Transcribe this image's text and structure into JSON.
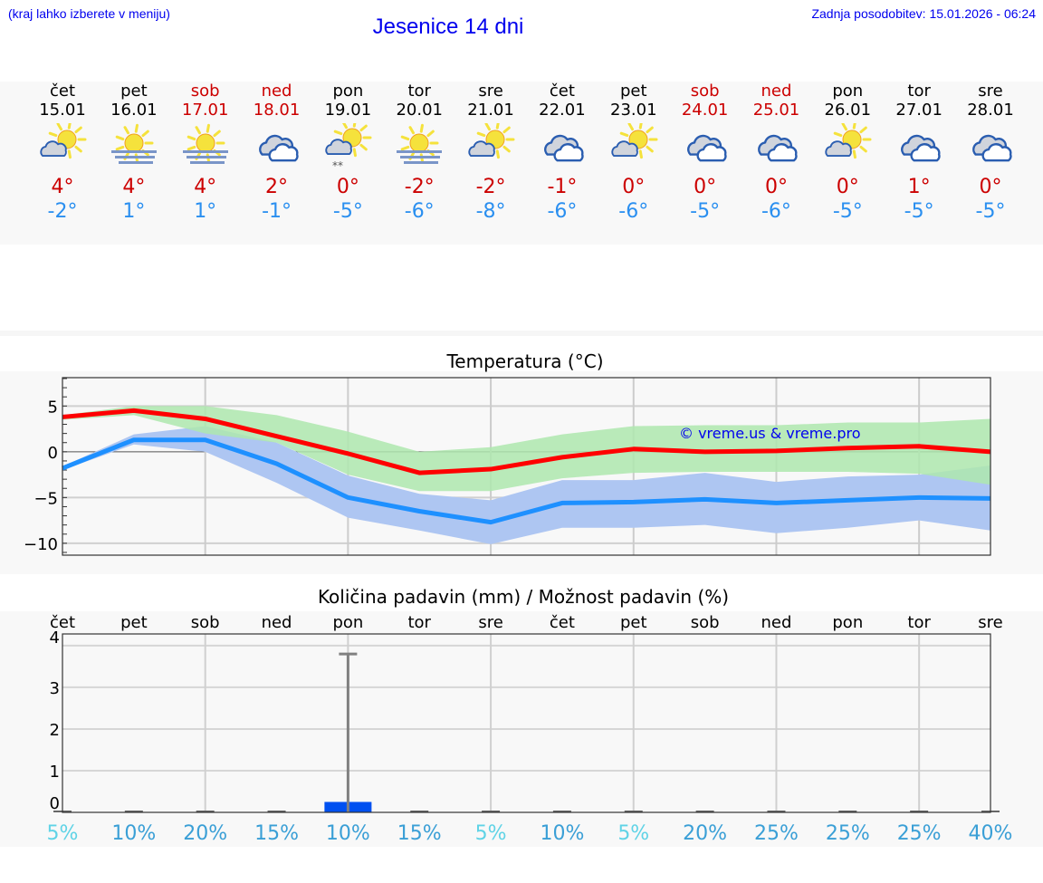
{
  "header": {
    "hint": "(kraj lahko izberete v meniju)",
    "title": "Jesenice 14 dni",
    "updated": "Zadnja posodobitev: 15.01.2026 - 06:24"
  },
  "colors": {
    "link_blue": "#0000ee",
    "weekend_red": "#cc0000",
    "max_temp": "#cc0000",
    "min_temp": "#2a8ff0",
    "max_line": "#ff0000",
    "min_line": "#1e90ff",
    "max_band": "#aee8ae",
    "min_band": "#aec6f2",
    "overlap_band": "#7fc8a8",
    "precip_bar": "#0050f0",
    "precip_err": "#808080",
    "prob_low": "#5fd3e6",
    "prob": "#3a9fd6"
  },
  "days": [
    {
      "name": "čet",
      "date": "15.01",
      "weekend": false,
      "icon": "sun-cloud-icon",
      "max": "4°",
      "min": "-2°"
    },
    {
      "name": "pet",
      "date": "16.01",
      "weekend": false,
      "icon": "sun-fog-icon",
      "max": "4°",
      "min": "1°"
    },
    {
      "name": "sob",
      "date": "17.01",
      "weekend": true,
      "icon": "sun-fog-icon",
      "max": "4°",
      "min": "1°"
    },
    {
      "name": "ned",
      "date": "18.01",
      "weekend": true,
      "icon": "cloudy-icon",
      "max": "2°",
      "min": "-1°"
    },
    {
      "name": "pon",
      "date": "19.01",
      "weekend": false,
      "icon": "sun-cloud-snow-icon",
      "max": "0°",
      "min": "-5°"
    },
    {
      "name": "tor",
      "date": "20.01",
      "weekend": false,
      "icon": "sun-fog-icon",
      "max": "-2°",
      "min": "-6°"
    },
    {
      "name": "sre",
      "date": "21.01",
      "weekend": false,
      "icon": "sun-cloud-icon",
      "max": "-2°",
      "min": "-8°"
    },
    {
      "name": "čet",
      "date": "22.01",
      "weekend": false,
      "icon": "cloudy-icon",
      "max": "-1°",
      "min": "-6°"
    },
    {
      "name": "pet",
      "date": "23.01",
      "weekend": false,
      "icon": "sun-cloud-icon",
      "max": "0°",
      "min": "-6°"
    },
    {
      "name": "sob",
      "date": "24.01",
      "weekend": true,
      "icon": "cloudy-icon",
      "max": "0°",
      "min": "-5°"
    },
    {
      "name": "ned",
      "date": "25.01",
      "weekend": true,
      "icon": "cloudy-icon",
      "max": "0°",
      "min": "-6°"
    },
    {
      "name": "pon",
      "date": "26.01",
      "weekend": false,
      "icon": "sun-cloud-icon",
      "max": "0°",
      "min": "-5°"
    },
    {
      "name": "tor",
      "date": "27.01",
      "weekend": false,
      "icon": "cloudy-icon",
      "max": "1°",
      "min": "-5°"
    },
    {
      "name": "sre",
      "date": "28.01",
      "weekend": false,
      "icon": "cloudy-icon",
      "max": "0°",
      "min": "-5°"
    }
  ],
  "temp_chart": {
    "title": "Temperatura (°C)",
    "watermark": "© vreme.us & vreme.pro"
  },
  "precip_chart": {
    "title": "Količina padavin (mm) / Možnost padavin (%)"
  },
  "chart_data": [
    {
      "type": "line",
      "title": "Temperatura (°C)",
      "xlabel": "",
      "ylabel": "°C",
      "ylim": [
        -11.3,
        8.1
      ],
      "yticks": [
        5,
        0,
        -5,
        -10
      ],
      "ytick_labels": [
        "5",
        "0",
        "−5",
        "−10"
      ],
      "grid": true,
      "x": [
        "15.01",
        "16.01",
        "17.01",
        "18.01",
        "19.01",
        "20.01",
        "21.01",
        "22.01",
        "23.01",
        "24.01",
        "25.01",
        "26.01",
        "27.01",
        "28.01"
      ],
      "series": [
        {
          "name": "max",
          "color": "#ff0000",
          "values": [
            3.8,
            4.5,
            3.6,
            1.7,
            -0.2,
            -2.3,
            -1.9,
            -0.6,
            0.3,
            0.0,
            0.1,
            0.4,
            0.6,
            0.0
          ]
        },
        {
          "name": "min",
          "color": "#1e90ff",
          "values": [
            -1.8,
            1.3,
            1.3,
            -1.3,
            -5.0,
            -6.5,
            -7.7,
            -5.6,
            -5.5,
            -5.2,
            -5.6,
            -5.3,
            -5.0,
            -5.1
          ]
        }
      ],
      "bands": [
        {
          "name": "max_range",
          "color": "#aee8ae",
          "upper": [
            4.0,
            5.0,
            5.0,
            4.0,
            2.2,
            0.0,
            0.5,
            1.9,
            2.8,
            2.9,
            2.9,
            3.2,
            3.2,
            3.6
          ],
          "lower": [
            3.5,
            4.0,
            2.0,
            1.0,
            -2.5,
            -4.3,
            -4.3,
            -2.9,
            -2.3,
            -2.2,
            -2.2,
            -2.2,
            -2.4,
            -3.6
          ]
        },
        {
          "name": "min_range",
          "color": "#aec6f2",
          "upper": [
            -1.6,
            1.9,
            2.8,
            1.0,
            -2.6,
            -4.6,
            -5.3,
            -3.1,
            -3.1,
            -2.3,
            -3.3,
            -2.7,
            -2.5,
            -1.5
          ],
          "lower": [
            -2.0,
            0.8,
            0.0,
            -3.4,
            -7.2,
            -8.6,
            -10.1,
            -8.3,
            -8.3,
            -8.0,
            -8.9,
            -8.3,
            -7.5,
            -8.6
          ]
        }
      ],
      "annotations": [
        "© vreme.us & vreme.pro"
      ]
    },
    {
      "type": "bar",
      "title": "Količina padavin (mm) / Možnost padavin (%)",
      "xlabel": "",
      "ylabel": "mm",
      "ylim": [
        0,
        4.28
      ],
      "yticks": [
        0,
        1,
        2,
        3,
        4
      ],
      "grid": true,
      "categories": [
        "čet",
        "pet",
        "sob",
        "ned",
        "pon",
        "tor",
        "sre",
        "čet",
        "pet",
        "sob",
        "ned",
        "pon",
        "tor",
        "sre"
      ],
      "series": [
        {
          "name": "Količina padavin (mm)",
          "values": [
            0,
            0,
            0,
            0,
            0.25,
            0,
            0,
            0,
            0,
            0,
            0,
            0,
            0,
            0
          ]
        },
        {
          "name": "Največja možna količina (mm)",
          "values": [
            0,
            0,
            0,
            0,
            3.8,
            0,
            0,
            0,
            0,
            0,
            0,
            0,
            0,
            0
          ]
        },
        {
          "name": "Možnost padavin (%)",
          "values": [
            5,
            10,
            20,
            15,
            10,
            15,
            5,
            10,
            5,
            20,
            25,
            25,
            25,
            40
          ]
        }
      ],
      "prob_labels": [
        "5%",
        "10%",
        "20%",
        "15%",
        "10%",
        "15%",
        "5%",
        "10%",
        "5%",
        "20%",
        "25%",
        "25%",
        "25%",
        "40%"
      ]
    }
  ]
}
